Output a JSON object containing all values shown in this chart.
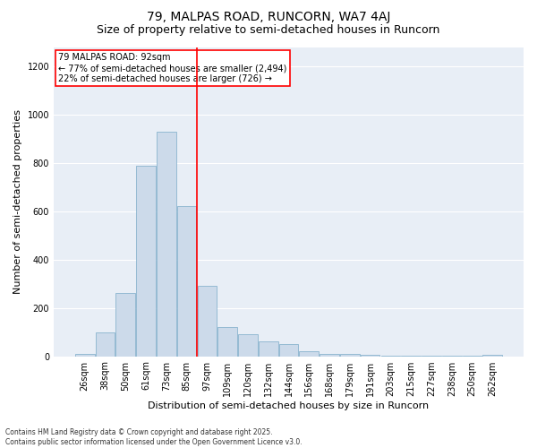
{
  "title1": "79, MALPAS ROAD, RUNCORN, WA7 4AJ",
  "title2": "Size of property relative to semi-detached houses in Runcorn",
  "xlabel": "Distribution of semi-detached houses by size in Runcorn",
  "ylabel": "Number of semi-detached properties",
  "annotation_title": "79 MALPAS ROAD: 92sqm",
  "annotation_line1": "← 77% of semi-detached houses are smaller (2,494)",
  "annotation_line2": "22% of semi-detached houses are larger (726) →",
  "footer1": "Contains HM Land Registry data © Crown copyright and database right 2025.",
  "footer2": "Contains public sector information licensed under the Open Government Licence v3.0.",
  "bar_color": "#ccdaea",
  "bar_edge_color": "#7aaac8",
  "vline_color": "red",
  "bg_color": "#e8eef6",
  "grid_color": "#ffffff",
  "categories": [
    "26sqm",
    "38sqm",
    "50sqm",
    "61sqm",
    "73sqm",
    "85sqm",
    "97sqm",
    "109sqm",
    "120sqm",
    "132sqm",
    "144sqm",
    "156sqm",
    "168sqm",
    "179sqm",
    "191sqm",
    "203sqm",
    "215sqm",
    "227sqm",
    "238sqm",
    "250sqm",
    "262sqm"
  ],
  "values": [
    10,
    100,
    260,
    790,
    930,
    620,
    290,
    120,
    90,
    60,
    50,
    20,
    10,
    8,
    5,
    3,
    2,
    1,
    1,
    1,
    5
  ],
  "ylim": [
    0,
    1280
  ],
  "yticks": [
    0,
    200,
    400,
    600,
    800,
    1000,
    1200
  ],
  "vline_index": 6,
  "title1_fontsize": 10,
  "title2_fontsize": 9,
  "tick_fontsize": 7,
  "ylabel_fontsize": 8,
  "xlabel_fontsize": 8,
  "annotation_fontsize": 7,
  "footer_fontsize": 5.5
}
